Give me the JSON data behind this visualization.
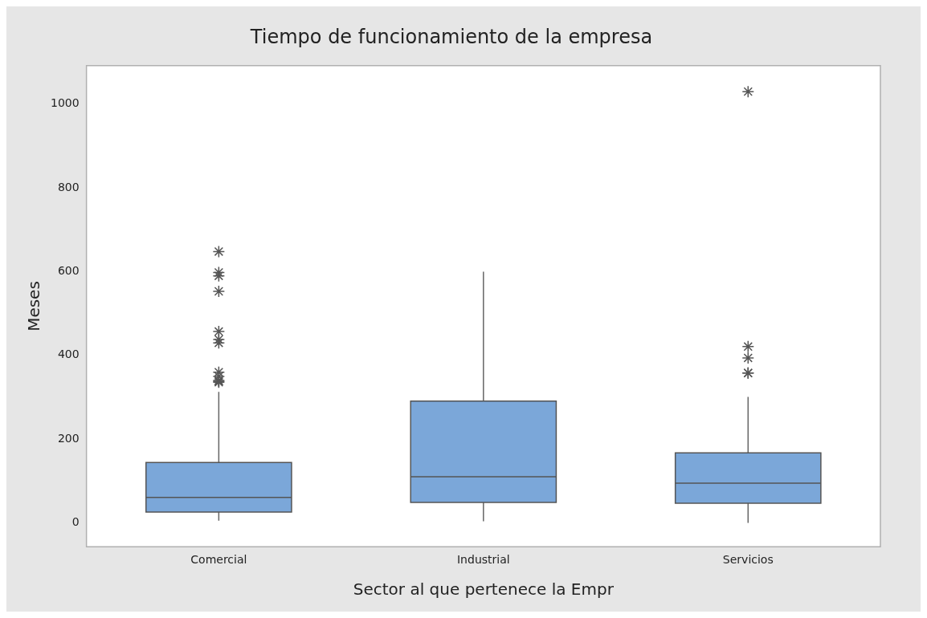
{
  "chart_data": {
    "type": "box",
    "title": "Tiempo de funcionamiento de la empresa",
    "xlabel": "Sector al que pertenece la Empr",
    "ylabel": "Meses",
    "categories": [
      "Comercial",
      "Industrial",
      "Servicios"
    ],
    "series": [
      {
        "color": "#7ba7d9",
        "boxes": [
          {
            "low": 5,
            "q1": 26,
            "median": 61,
            "q3": 144,
            "high": 313,
            "outliers": [
              648,
              598,
              590,
              553,
              457,
              438,
              430,
              360,
              350,
              340,
              338,
              336
            ]
          },
          {
            "low": 4,
            "q1": 49,
            "median": 110,
            "q3": 291,
            "high": 600
          },
          {
            "low": 0,
            "q1": 47,
            "median": 95,
            "q3": 167,
            "high": 301,
            "outliers": [
              1030,
              421,
              394,
              358,
              358
            ]
          }
        ]
      }
    ],
    "ylim": [
      -57,
      1092
    ],
    "yticks": [
      0,
      200,
      400,
      600,
      800,
      1000
    ],
    "grid": false,
    "legend": false,
    "marker": "star"
  }
}
